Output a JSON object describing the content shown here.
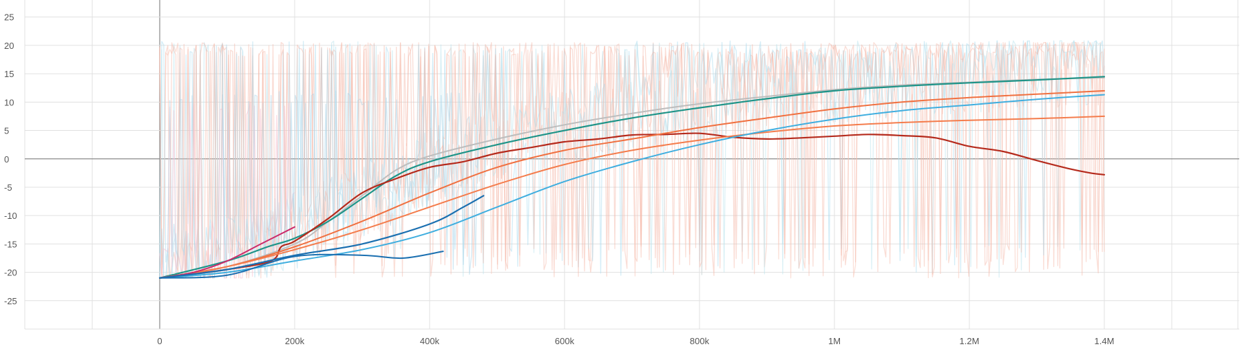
{
  "chart_data": {
    "type": "line",
    "title": "",
    "xlabel": "",
    "ylabel": "",
    "xlim": [
      -200000,
      1600000
    ],
    "ylim": [
      -30,
      28
    ],
    "grid": true,
    "legend": "none",
    "x_ticks": [
      {
        "value": 0,
        "label": "0"
      },
      {
        "value": 200000,
        "label": "200k"
      },
      {
        "value": 400000,
        "label": "400k"
      },
      {
        "value": 600000,
        "label": "600k"
      },
      {
        "value": 800000,
        "label": "800k"
      },
      {
        "value": 1000000,
        "label": "1M"
      },
      {
        "value": 1200000,
        "label": "1.2M"
      },
      {
        "value": 1400000,
        "label": "1.4M"
      }
    ],
    "y_ticks": [
      {
        "value": 25,
        "label": "25"
      },
      {
        "value": 20,
        "label": "20"
      },
      {
        "value": 15,
        "label": "15"
      },
      {
        "value": 10,
        "label": "10"
      },
      {
        "value": 5,
        "label": "5"
      },
      {
        "value": 0,
        "label": "0"
      },
      {
        "value": -5,
        "label": "-5"
      },
      {
        "value": -10,
        "label": "-10"
      },
      {
        "value": -15,
        "label": "-15"
      },
      {
        "value": -20,
        "label": "-20"
      },
      {
        "value": -25,
        "label": "-25"
      }
    ],
    "raw_series": [
      {
        "color": "#f5bfb0",
        "opacity": 0.55,
        "x_start": 0,
        "x_end": 1400000,
        "low": -21,
        "high": 20.5,
        "seed": 11,
        "volatility": 0.65
      },
      {
        "color": "#f7c6b8",
        "opacity": 0.55,
        "x_start": 0,
        "x_end": 1400000,
        "low": -21,
        "high": 20.5,
        "seed": 23,
        "volatility": 0.55
      },
      {
        "color": "#a9dcef",
        "opacity": 0.5,
        "x_start": 0,
        "x_end": 1400000,
        "low": -21,
        "high": 20.8,
        "seed": 37,
        "volatility": 0.35
      },
      {
        "color": "#b9e3ee",
        "opacity": 0.5,
        "x_start": 0,
        "x_end": 1400000,
        "low": -21,
        "high": 20.8,
        "seed": 53,
        "volatility": 0.3
      },
      {
        "color": "#f8c2d4",
        "opacity": 0.55,
        "x_start": 0,
        "x_end": 200000,
        "low": -21,
        "high": 10,
        "seed": 71,
        "volatility": 0.5
      },
      {
        "color": "#a7d3ea",
        "opacity": 0.5,
        "x_start": 0,
        "x_end": 480000,
        "low": -21,
        "high": 12,
        "seed": 89,
        "volatility": 0.45
      },
      {
        "color": "#f3b3a4",
        "opacity": 0.45,
        "x_start": 0,
        "x_end": 1400000,
        "low": -21,
        "high": 20.5,
        "seed": 101,
        "volatility": 0.75
      }
    ],
    "series": [
      {
        "color": "#bdbdbd",
        "width": 2,
        "x": [
          0,
          100000,
          200000,
          250000,
          300000,
          350000,
          400000,
          500000,
          600000,
          700000,
          800000,
          900000,
          1000000,
          1100000,
          1200000,
          1300000,
          1400000
        ],
        "y": [
          -21,
          -19,
          -15,
          -11,
          -6.5,
          -2,
          0.5,
          3.5,
          6,
          8,
          9.7,
          11,
          12.2,
          13,
          13.5,
          14,
          14.3
        ]
      },
      {
        "color": "#1f9488",
        "width": 2.2,
        "x": [
          0,
          100000,
          160000,
          200000,
          250000,
          300000,
          350000,
          400000,
          500000,
          600000,
          700000,
          800000,
          900000,
          1000000,
          1100000,
          1200000,
          1300000,
          1400000
        ],
        "y": [
          -21,
          -18,
          -15.5,
          -14,
          -11,
          -7,
          -3,
          -0.5,
          2.5,
          5,
          7.2,
          9,
          10.6,
          12,
          12.8,
          13.4,
          13.9,
          14.5
        ]
      },
      {
        "color": "#b52a1c",
        "width": 2.2,
        "x": [
          0,
          100000,
          165000,
          180000,
          200000,
          250000,
          300000,
          350000,
          400000,
          450000,
          500000,
          550000,
          600000,
          650000,
          700000,
          750000,
          800000,
          850000,
          900000,
          950000,
          1000000,
          1050000,
          1100000,
          1150000,
          1200000,
          1250000,
          1300000,
          1350000,
          1380000,
          1400000
        ],
        "y": [
          -21,
          -19.5,
          -18,
          -15.5,
          -14.5,
          -10.5,
          -6,
          -3.5,
          -1.5,
          -0.5,
          1,
          2,
          3,
          3.5,
          4.2,
          4.3,
          4.5,
          3.8,
          3.5,
          3.7,
          4,
          4.3,
          4.1,
          3.7,
          2.2,
          1.3,
          -0.3,
          -1.8,
          -2.5,
          -2.8
        ]
      },
      {
        "color": "#f07040",
        "width": 2,
        "x": [
          0,
          100000,
          200000,
          300000,
          400000,
          500000,
          600000,
          700000,
          800000,
          900000,
          1000000,
          1100000,
          1200000,
          1300000,
          1400000
        ],
        "y": [
          -21,
          -19,
          -15.5,
          -11,
          -6,
          -1.5,
          1.5,
          3.5,
          5.5,
          7.2,
          8.8,
          10,
          10.8,
          11.4,
          12
        ]
      },
      {
        "color": "#f47c4c",
        "width": 2,
        "x": [
          0,
          100000,
          200000,
          300000,
          400000,
          500000,
          600000,
          700000,
          800000,
          900000,
          1000000,
          1100000,
          1200000,
          1300000,
          1400000
        ],
        "y": [
          -21,
          -19,
          -16,
          -12.5,
          -8.5,
          -4.5,
          -1,
          1.5,
          3.3,
          4.7,
          5.8,
          6.4,
          6.8,
          7.1,
          7.5
        ]
      },
      {
        "color": "#3faedf",
        "width": 2,
        "x": [
          0,
          100000,
          200000,
          300000,
          400000,
          500000,
          600000,
          700000,
          800000,
          900000,
          1000000,
          1100000,
          1200000,
          1300000,
          1400000
        ],
        "y": [
          -21,
          -20,
          -18,
          -16,
          -13,
          -8.5,
          -4,
          -0.5,
          2.5,
          5,
          7,
          8.5,
          9.5,
          10.5,
          11.3
        ]
      },
      {
        "color": "#cc2a6a",
        "width": 2,
        "x": [
          0,
          50000,
          100000,
          150000,
          200000
        ],
        "y": [
          -21,
          -20,
          -18,
          -15,
          -12
        ]
      },
      {
        "color": "#1a6fb0",
        "width": 2.2,
        "x": [
          0,
          100000,
          200000,
          300000,
          400000,
          450000,
          480000
        ],
        "y": [
          -21,
          -19.5,
          -17,
          -15,
          -11.5,
          -8.5,
          -6.5
        ]
      },
      {
        "color": "#1a6fb0",
        "width": 2,
        "x": [
          0,
          100000,
          200000,
          300000,
          360000,
          420000
        ],
        "y": [
          -21,
          -20.5,
          -17.2,
          -17,
          -17.5,
          -16.3
        ]
      }
    ]
  }
}
